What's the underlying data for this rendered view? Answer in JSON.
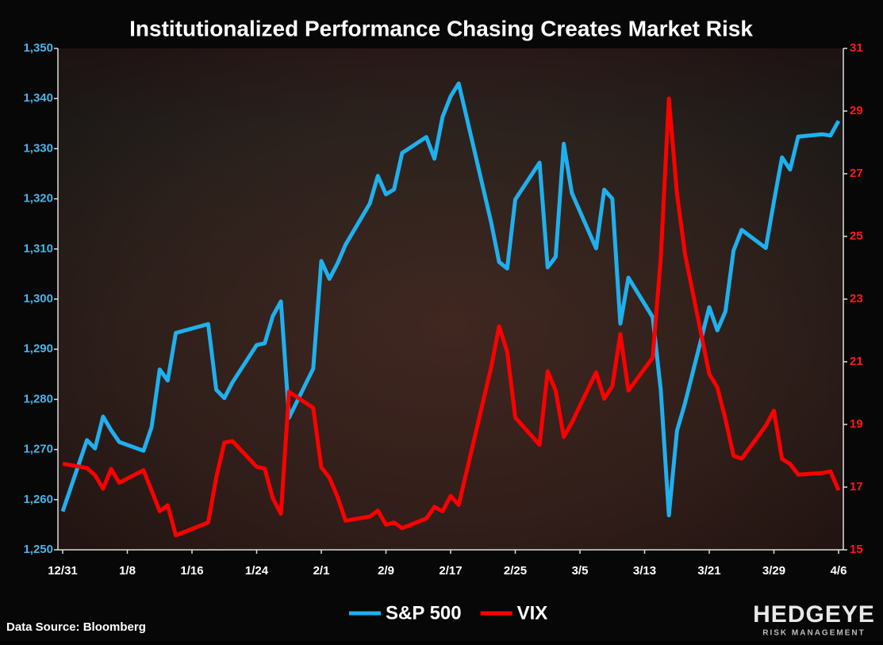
{
  "chart_data": {
    "type": "line",
    "title": "Institutionalized Performance Chasing Creates Market Risk",
    "source": "Data Source: Bloomberg",
    "logo": "HEDGEYE",
    "logo_subtitle": "RISK MANAGEMENT",
    "x": [
      "12/31",
      "1/3",
      "1/4",
      "1/5",
      "1/6",
      "1/7",
      "1/10",
      "1/11",
      "1/12",
      "1/13",
      "1/14",
      "1/18",
      "1/19",
      "1/20",
      "1/21",
      "1/24",
      "1/25",
      "1/26",
      "1/27",
      "1/28",
      "1/31",
      "2/1",
      "2/2",
      "2/3",
      "2/4",
      "2/7",
      "2/8",
      "2/9",
      "2/10",
      "2/11",
      "2/14",
      "2/15",
      "2/16",
      "2/17",
      "2/18",
      "2/22",
      "2/23",
      "2/24",
      "2/25",
      "2/28",
      "3/1",
      "3/2",
      "3/3",
      "3/4",
      "3/7",
      "3/8",
      "3/9",
      "3/10",
      "3/11",
      "3/14",
      "3/15",
      "3/16",
      "3/17",
      "3/18",
      "3/21",
      "3/22",
      "3/23",
      "3/24",
      "3/25",
      "3/28",
      "3/29",
      "3/30",
      "3/31",
      "4/1",
      "4/4",
      "4/5",
      "4/6"
    ],
    "xticks": [
      "12/31",
      "1/8",
      "1/16",
      "1/24",
      "2/1",
      "2/9",
      "2/17",
      "2/25",
      "3/5",
      "3/13",
      "3/21",
      "3/29",
      "4/6"
    ],
    "series": [
      {
        "name": "S&P 500",
        "color": "#1fb0ee",
        "values": [
          1257.64,
          1271.87,
          1270.2,
          1276.56,
          1273.85,
          1271.5,
          1269.75,
          1274.48,
          1285.96,
          1283.76,
          1293.24,
          1295.02,
          1281.92,
          1280.26,
          1283.35,
          1290.84,
          1291.18,
          1296.63,
          1299.54,
          1276.34,
          1286.12,
          1307.59,
          1304.03,
          1307.1,
          1310.87,
          1319.05,
          1324.57,
          1320.88,
          1321.87,
          1329.15,
          1332.32,
          1328.01,
          1336.32,
          1340.43,
          1343.01,
          1315.44,
          1307.4,
          1306.1,
          1319.88,
          1327.22,
          1306.33,
          1308.44,
          1330.97,
          1321.15,
          1310.13,
          1321.82,
          1320.02,
          1295.11,
          1304.28,
          1296.39,
          1281.87,
          1256.88,
          1273.72,
          1279.21,
          1298.38,
          1293.77,
          1297.54,
          1309.66,
          1313.8,
          1310.19,
          1319.44,
          1328.26,
          1325.83,
          1332.41,
          1332.87,
          1332.63,
          1335.54
        ]
      },
      {
        "name": "VIX",
        "color": "#ff0000",
        "axis": "y2",
        "values": [
          17.75,
          17.61,
          17.38,
          16.95,
          17.58,
          17.14,
          17.54,
          16.89,
          16.23,
          16.42,
          15.46,
          15.87,
          17.31,
          18.42,
          18.47,
          17.65,
          17.59,
          16.64,
          16.15,
          20.04,
          19.53,
          17.63,
          17.3,
          16.69,
          15.93,
          16.06,
          16.25,
          15.8,
          15.87,
          15.69,
          16.0,
          16.37,
          16.23,
          16.72,
          16.43,
          20.8,
          22.13,
          21.32,
          19.22,
          18.35,
          20.7,
          20.08,
          18.6,
          19.06,
          20.66,
          19.82,
          20.22,
          21.88,
          20.08,
          21.13,
          24.32,
          29.4,
          26.37,
          24.44,
          20.61,
          20.18,
          19.17,
          18.0,
          17.91,
          18.96,
          19.44,
          17.9,
          17.74,
          17.4,
          17.45,
          17.5,
          16.9
        ]
      }
    ],
    "ylim": [
      1250,
      1350
    ],
    "yticks": [
      {
        "value": 1250,
        "label": "1,250"
      },
      {
        "value": 1260,
        "label": "1,260"
      },
      {
        "value": 1270,
        "label": "1,270"
      },
      {
        "value": 1280,
        "label": "1,280"
      },
      {
        "value": 1290,
        "label": "1,290"
      },
      {
        "value": 1300,
        "label": "1,300"
      },
      {
        "value": 1310,
        "label": "1,310"
      },
      {
        "value": 1320,
        "label": "1,320"
      },
      {
        "value": 1330,
        "label": "1,330"
      },
      {
        "value": 1340,
        "label": "1,340"
      },
      {
        "value": 1350,
        "label": "1,350"
      }
    ],
    "y2lim": [
      15,
      31
    ],
    "y2ticks": [
      15,
      17,
      19,
      21,
      23,
      25,
      27,
      29,
      31
    ],
    "ytick_color": "#4ab3ea",
    "y2tick_color": "#ff1a1a"
  }
}
